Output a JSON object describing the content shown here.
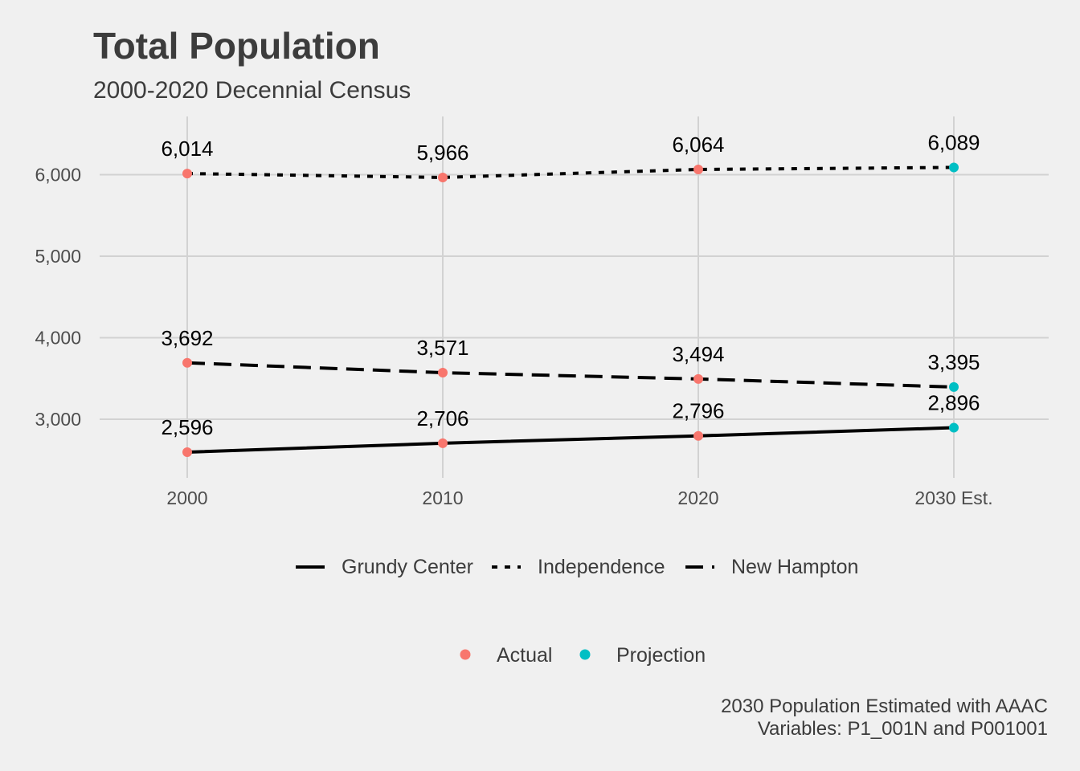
{
  "title": "Total Population",
  "subtitle": "2000-2020 Decennial Census",
  "caption_lines": [
    "2030 Population Estimated with AAAC",
    "Variables: P1_001N and P001001"
  ],
  "chart_data": {
    "type": "line",
    "x": [
      "2000",
      "2010",
      "2020",
      "2030 Est."
    ],
    "ylim": [
      2400,
      6700
    ],
    "yticks": [
      3000,
      4000,
      5000,
      6000
    ],
    "ytick_labels": [
      "3,000",
      "4,000",
      "5,000",
      "6,000"
    ],
    "grid": true,
    "series": [
      {
        "name": "Grundy Center",
        "linetype": "solid",
        "values": [
          2596,
          2706,
          2796,
          2896
        ],
        "labels": [
          "2,596",
          "2,706",
          "2,796",
          "2,896"
        ]
      },
      {
        "name": "Independence",
        "linetype": "dotted",
        "values": [
          6014,
          5966,
          6064,
          6089
        ],
        "labels": [
          "6,014",
          "5,966",
          "6,064",
          "6,089"
        ]
      },
      {
        "name": "New Hampton",
        "linetype": "dashed",
        "values": [
          3692,
          3571,
          3494,
          3395
        ],
        "labels": [
          "3,692",
          "3,571",
          "3,494",
          "3,395"
        ]
      }
    ],
    "point_status": [
      "Actual",
      "Actual",
      "Actual",
      "Projection"
    ],
    "status_legend": [
      {
        "name": "Actual",
        "color": "#f8766d"
      },
      {
        "name": "Projection",
        "color": "#00bfc4"
      }
    ],
    "legend_position": "bottom",
    "line_color": "#000000"
  }
}
